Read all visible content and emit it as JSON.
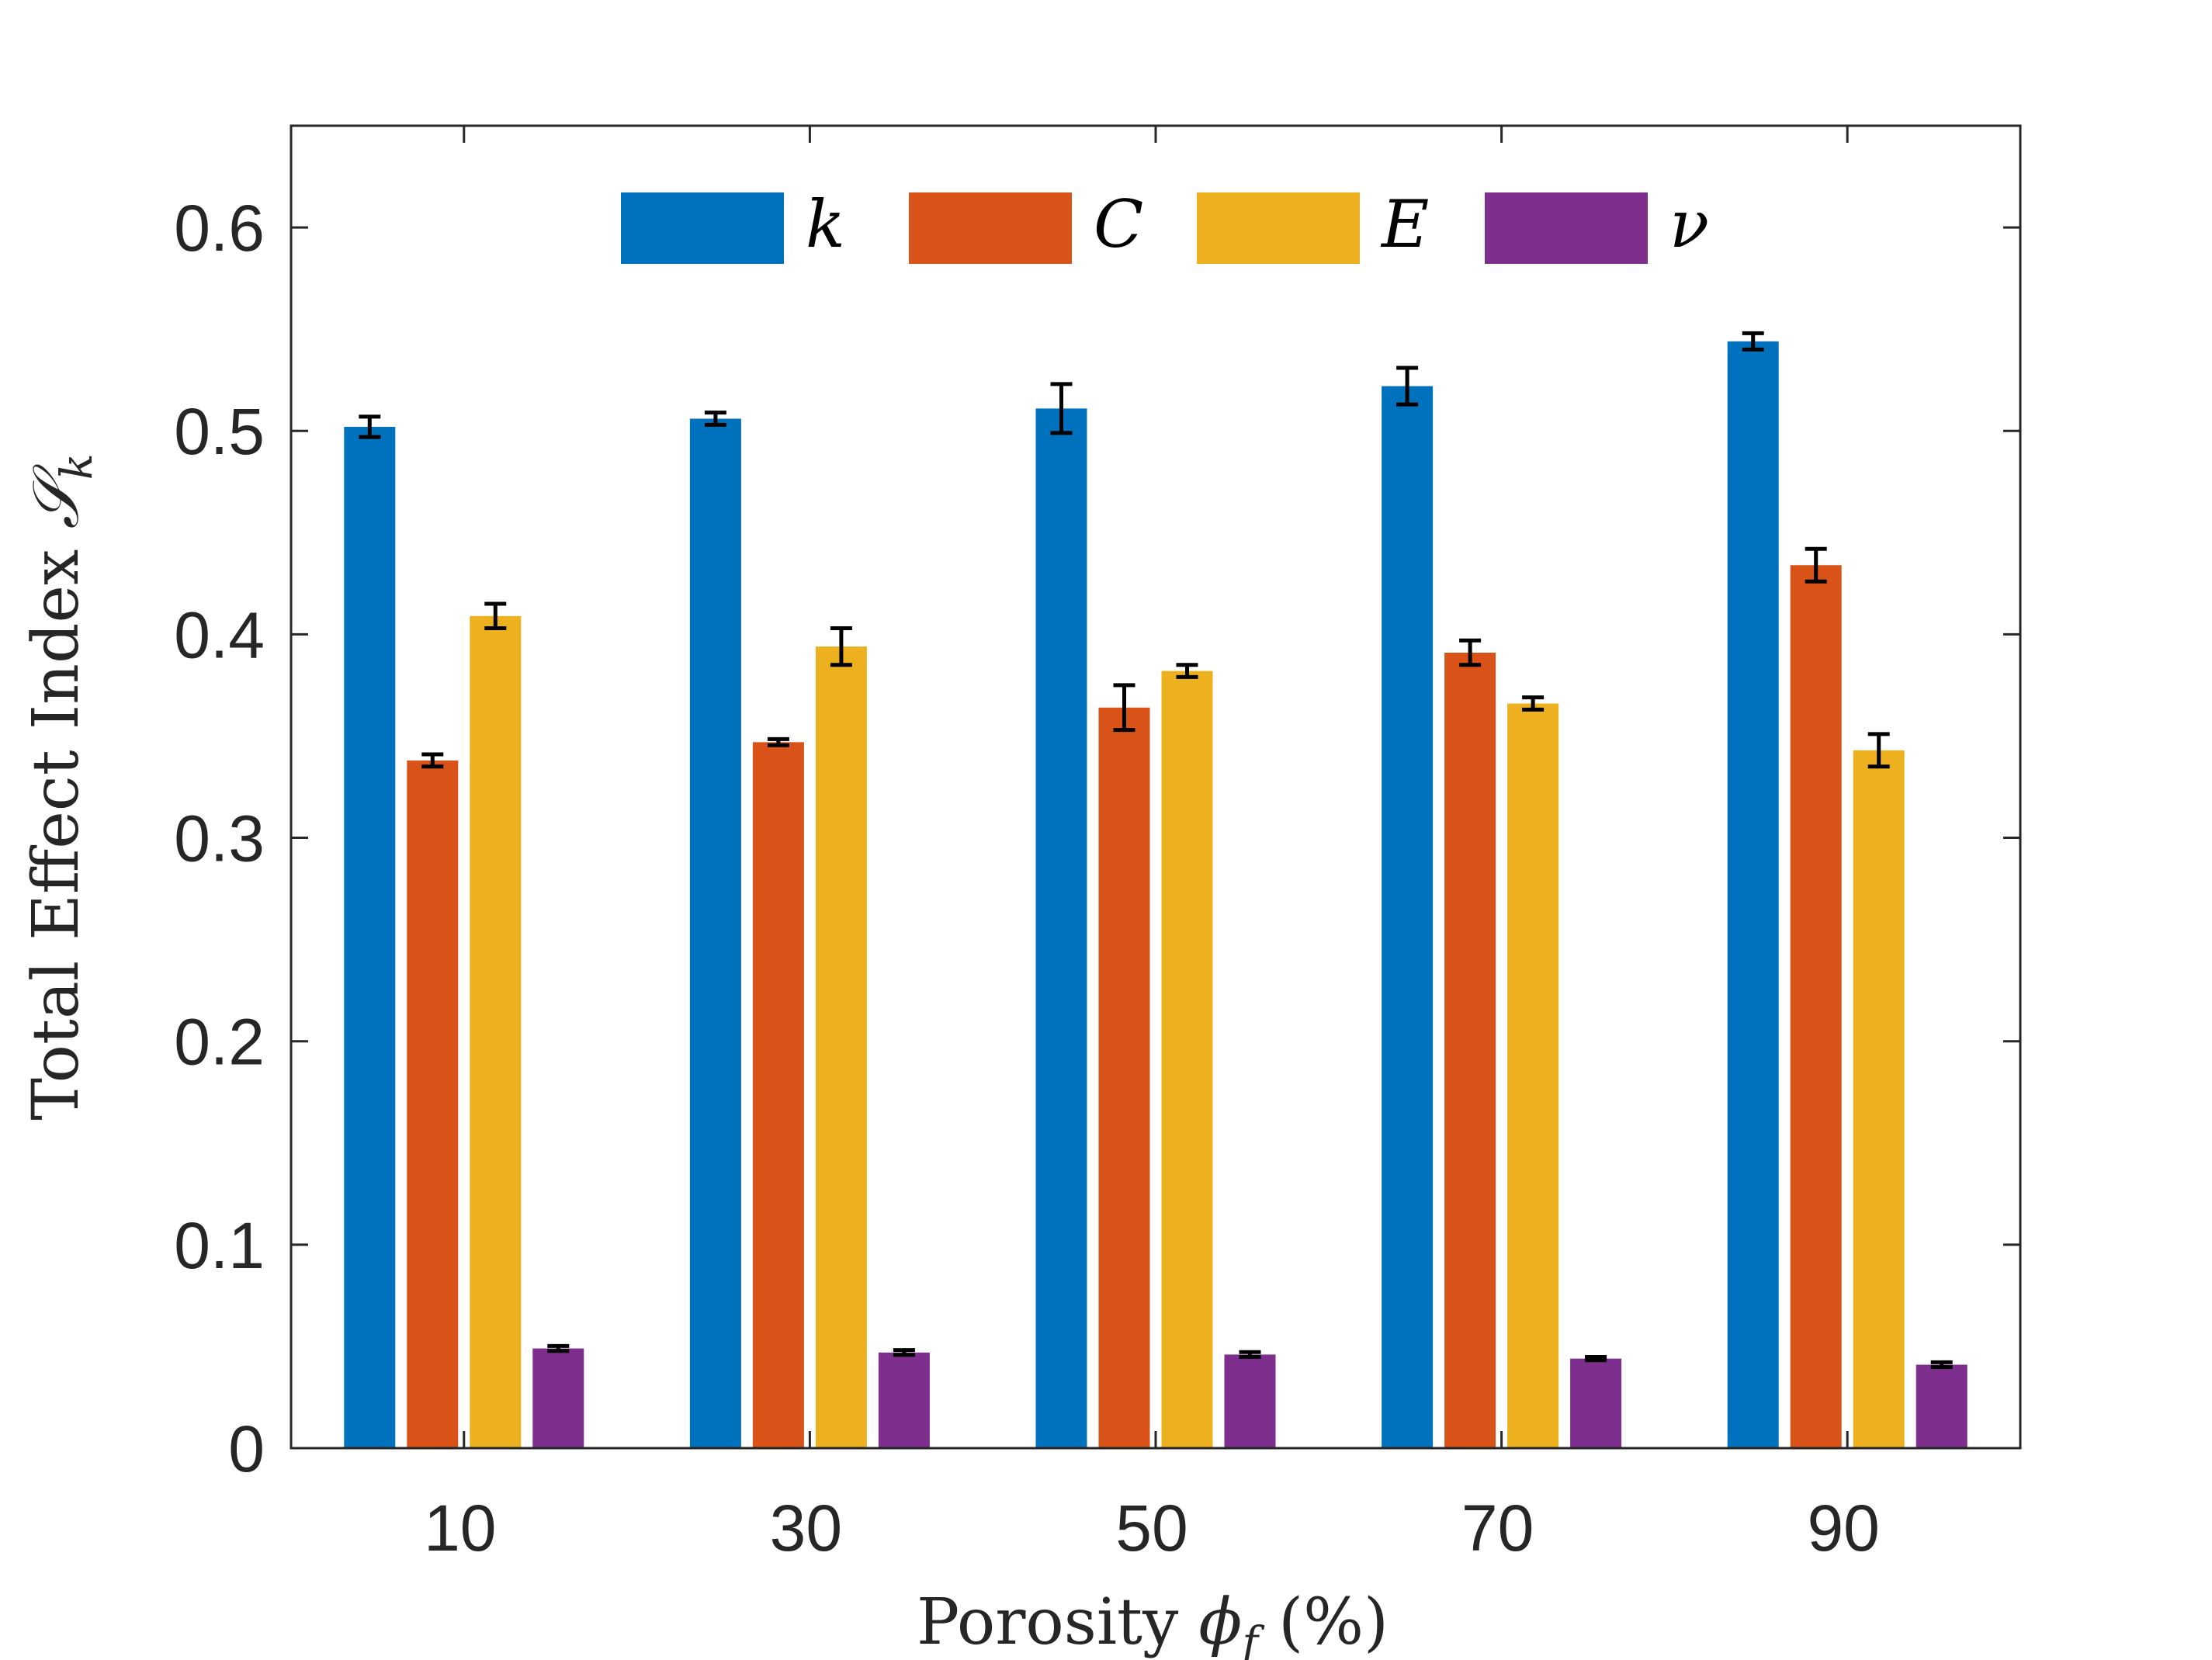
{
  "chart_data": {
    "type": "bar",
    "title": "",
    "xlabel": "Porosity ϕf (%)",
    "xlabel_parts": {
      "prefix": "Porosity ",
      "symbol": "ϕ",
      "subscript": "f",
      "suffix": " (%)"
    },
    "ylabel": "Total Effect Index 𝒮k",
    "ylabel_parts": {
      "prefix": "Total Effect Index ",
      "symbol": "𝒮",
      "subscript": "k"
    },
    "categories": [
      "10",
      "30",
      "50",
      "70",
      "90"
    ],
    "ylim": [
      0,
      0.65
    ],
    "yticks": [
      0,
      0.1,
      0.2,
      0.3,
      0.4,
      0.5,
      0.6
    ],
    "ytick_labels": [
      "0",
      "0.1",
      "0.2",
      "0.3",
      "0.4",
      "0.5",
      "0.6"
    ],
    "legend_position": "top",
    "series": [
      {
        "name": "k",
        "color": "#0072BD",
        "values": [
          0.502,
          0.506,
          0.511,
          0.522,
          0.544
        ],
        "errors": [
          0.005,
          0.003,
          0.012,
          0.009,
          0.004
        ]
      },
      {
        "name": "C",
        "color": "#D95319",
        "values": [
          0.338,
          0.347,
          0.364,
          0.391,
          0.434
        ],
        "errors": [
          0.003,
          0.0015,
          0.011,
          0.006,
          0.008
        ]
      },
      {
        "name": "E",
        "color": "#EDB120",
        "values": [
          0.409,
          0.394,
          0.382,
          0.366,
          0.343
        ],
        "errors": [
          0.006,
          0.009,
          0.003,
          0.003,
          0.008
        ]
      },
      {
        "name": "ν",
        "color": "#7E2F8E",
        "values": [
          0.049,
          0.047,
          0.046,
          0.044,
          0.041
        ],
        "errors": [
          0.0012,
          0.0012,
          0.0012,
          0.0008,
          0.0012
        ]
      }
    ]
  }
}
